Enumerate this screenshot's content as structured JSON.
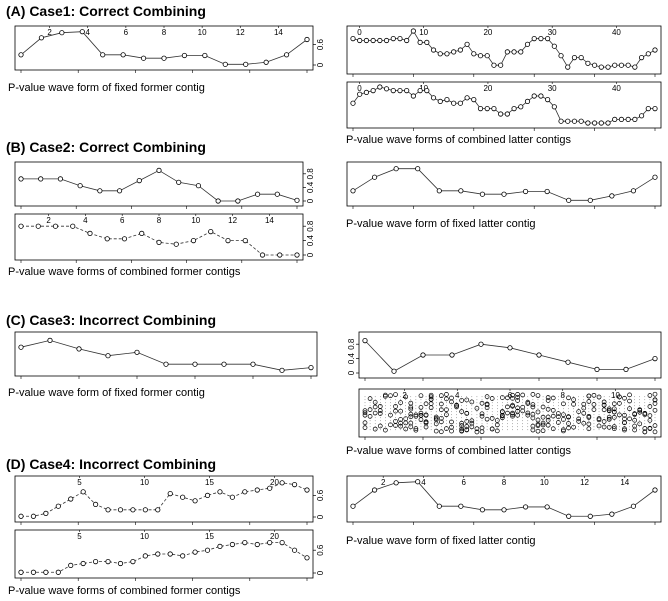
{
  "case_a": {
    "title": "(A) Case1: Correct Combining",
    "caption_left": "P-value wave form of fixed former contig",
    "caption_right": "P-value wave forms of combined latter contigs"
  },
  "case_b": {
    "title": "(B) Case2: Correct Combining",
    "caption_left": "P-value wave forms of combined former contigs",
    "caption_right": "P-value wave form of fixed latter contig"
  },
  "case_c": {
    "title": "(C) Case3: Incorrect Combining",
    "caption_left": "P-value wave form of fixed former contig",
    "caption_right": "P-value wave forms of combined latter contigs"
  },
  "case_d": {
    "title": "(D) Case4: Incorrect Combining",
    "caption_left": "P-value wave forms of combined former contigs",
    "caption_right": "P-value wave form of fixed latter contig"
  },
  "panels": [
    {
      "id": "A1",
      "xticks": [
        2,
        4,
        6,
        8,
        10,
        12,
        14
      ],
      "xlim": [
        0.5,
        15.5
      ],
      "xtick_pos": "top",
      "ylim": [
        0,
        1
      ],
      "yticks": [
        0,
        0.6
      ],
      "ytick_side": "right",
      "values": [
        0.3,
        0.8,
        0.95,
        0.98,
        0.3,
        0.3,
        0.2,
        0.2,
        0.28,
        0.28,
        0.02,
        0.02,
        0.08,
        0.3,
        0.75
      ],
      "dashed": false
    },
    {
      "id": "A2",
      "xticks": [
        0,
        10,
        20,
        30,
        40
      ],
      "xlim": [
        -1,
        46
      ],
      "xtick_pos": "top",
      "ylim": [
        0,
        1
      ],
      "yticks": [],
      "ytick_side": "right",
      "values": [
        0.8,
        0.75,
        0.75,
        0.75,
        0.75,
        0.75,
        0.8,
        0.8,
        0.75,
        1.0,
        0.7,
        0.7,
        0.5,
        0.4,
        0.4,
        0.45,
        0.5,
        0.65,
        0.4,
        0.35,
        0.35,
        0.1,
        0.1,
        0.45,
        0.45,
        0.45,
        0.65,
        0.8,
        0.8,
        0.8,
        0.6,
        0.35,
        0.05,
        0.3,
        0.3,
        0.15,
        0.1,
        0.05,
        0.05,
        0.1,
        0.1,
        0.1,
        0.05,
        0.3,
        0.4,
        0.5
      ],
      "dashed": false
    },
    {
      "id": "A3",
      "xticks": [
        0,
        10,
        20,
        30,
        40
      ],
      "xlim": [
        -1,
        46
      ],
      "xtick_pos": "top",
      "ylim": [
        0,
        1
      ],
      "yticks": [],
      "ytick_side": "right",
      "values": [
        0.55,
        0.8,
        0.85,
        0.9,
        1.0,
        0.95,
        0.9,
        0.9,
        0.9,
        0.75,
        0.9,
        0.9,
        0.7,
        0.6,
        0.65,
        0.55,
        0.55,
        0.7,
        0.65,
        0.4,
        0.4,
        0.4,
        0.25,
        0.25,
        0.4,
        0.45,
        0.6,
        0.75,
        0.75,
        0.65,
        0.45,
        0.05,
        0.05,
        0.05,
        0.05,
        0.0,
        0.0,
        0.0,
        0.0,
        0.1,
        0.1,
        0.1,
        0.1,
        0.2,
        0.4,
        0.4
      ],
      "dashed": false
    },
    {
      "id": "B1",
      "xticks": [],
      "xlim": [
        0.5,
        15.5
      ],
      "xtick_pos": "top",
      "ylim": [
        0,
        1
      ],
      "yticks": [
        0,
        0.4,
        0.8
      ],
      "ytick_side": "right",
      "values": [
        0.65,
        0.65,
        0.65,
        0.45,
        0.3,
        0.3,
        0.6,
        0.9,
        0.55,
        0.45,
        0.0,
        0.0,
        0.2,
        0.2,
        0.02
      ],
      "dashed": false
    },
    {
      "id": "B2",
      "xticks": [
        2,
        4,
        6,
        8,
        10,
        12,
        14
      ],
      "xlim": [
        0.5,
        15.5
      ],
      "xtick_pos": "top",
      "ylim": [
        0,
        1
      ],
      "yticks": [
        0,
        0.4,
        0.8
      ],
      "ytick_side": "right",
      "values": [
        0.8,
        0.8,
        0.8,
        0.8,
        0.6,
        0.45,
        0.45,
        0.6,
        0.35,
        0.3,
        0.4,
        0.65,
        0.4,
        0.4,
        0.0,
        0.0,
        0.0
      ],
      "dashed": true
    },
    {
      "id": "B3",
      "xticks": [],
      "xlim": [
        0.5,
        15.5
      ],
      "xtick_pos": "top",
      "ylim": [
        0,
        1
      ],
      "yticks": [],
      "ytick_side": "right",
      "values": [
        0.3,
        0.7,
        0.95,
        0.95,
        0.3,
        0.3,
        0.2,
        0.2,
        0.28,
        0.28,
        0.02,
        0.02,
        0.15,
        0.3,
        0.7
      ],
      "dashed": false
    },
    {
      "id": "C1",
      "xticks": [],
      "xlim": [
        0.5,
        10.5
      ],
      "xtick_pos": "top",
      "ylim": [
        0,
        1
      ],
      "yticks": [],
      "ytick_side": "right",
      "values": [
        0.7,
        0.9,
        0.65,
        0.45,
        0.55,
        0.2,
        0.2,
        0.2,
        0.2,
        0.02,
        0.1
      ],
      "dashed": false
    },
    {
      "id": "C2",
      "xticks": [],
      "xlim": [
        0.5,
        11.5
      ],
      "xtick_pos": "top",
      "ylim": [
        0,
        1
      ],
      "yticks": [
        0,
        0.4,
        0.8
      ],
      "ytick_side": "left",
      "values": [
        0.9,
        0.05,
        0.5,
        0.5,
        0.8,
        0.7,
        0.5,
        0.3,
        0.1,
        0.1,
        0.4
      ],
      "dashed": false
    },
    {
      "id": "C3",
      "xticks": [
        2,
        4,
        6,
        8,
        10
      ],
      "xlim": [
        0.5,
        11.5
      ],
      "xtick_pos": "top",
      "ylim": [
        0,
        1
      ],
      "yticks": [],
      "ytick_side": "left",
      "values": [],
      "dense": true,
      "dashed": true
    },
    {
      "id": "D1",
      "xticks": [
        5,
        10,
        15,
        20
      ],
      "xlim": [
        0.5,
        22.5
      ],
      "xtick_pos": "top",
      "ylim": [
        0,
        1
      ],
      "yticks": [
        0,
        0.6
      ],
      "ytick_side": "right",
      "values": [
        0.02,
        0.02,
        0.1,
        0.3,
        0.5,
        0.7,
        0.35,
        0.2,
        0.2,
        0.2,
        0.2,
        0.2,
        0.65,
        0.55,
        0.45,
        0.6,
        0.7,
        0.55,
        0.7,
        0.75,
        0.8,
        0.95,
        0.9,
        0.75
      ],
      "dashed": true
    },
    {
      "id": "D2",
      "xticks": [
        5,
        10,
        15,
        20
      ],
      "xlim": [
        0.5,
        22.5
      ],
      "xtick_pos": "top",
      "ylim": [
        0,
        1
      ],
      "yticks": [
        0,
        0.6
      ],
      "ytick_side": "right",
      "values": [
        0.02,
        0.02,
        0.02,
        0.02,
        0.2,
        0.25,
        0.3,
        0.3,
        0.25,
        0.3,
        0.45,
        0.5,
        0.5,
        0.45,
        0.55,
        0.6,
        0.7,
        0.75,
        0.8,
        0.75,
        0.8,
        0.8,
        0.6,
        0.4
      ],
      "dashed": true
    },
    {
      "id": "D3",
      "xticks": [
        2,
        4,
        6,
        8,
        10,
        12,
        14
      ],
      "xlim": [
        0.5,
        15.5
      ],
      "xtick_pos": "top",
      "ylim": [
        0,
        1
      ],
      "yticks": [],
      "ytick_side": "right",
      "values": [
        0.3,
        0.75,
        0.95,
        0.98,
        0.3,
        0.3,
        0.2,
        0.2,
        0.28,
        0.28,
        0.02,
        0.02,
        0.08,
        0.3,
        0.75
      ],
      "dashed": false
    }
  ]
}
